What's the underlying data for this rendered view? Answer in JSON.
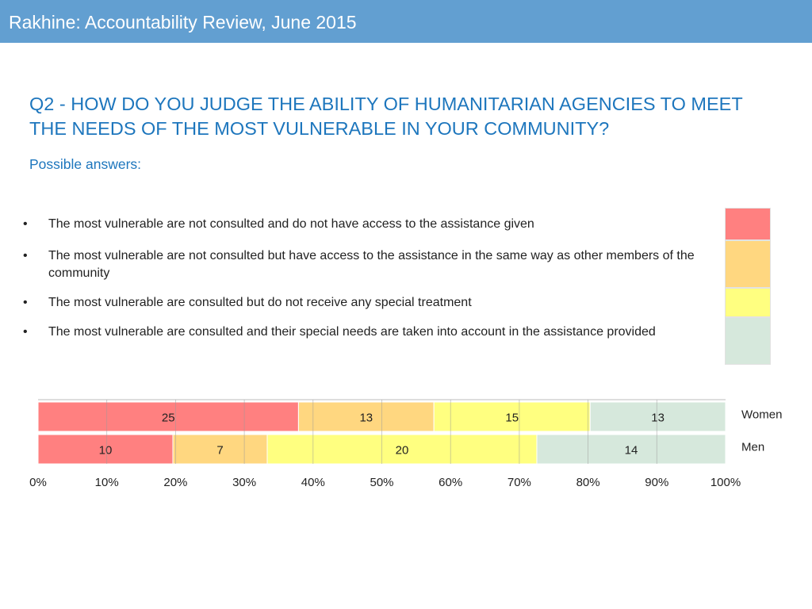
{
  "header": {
    "title": "Rakhine: Accountability Review, June 2015"
  },
  "question": "Q2 - HOW DO YOU JUDGE THE ABILITY OF HUMANITARIAN AGENCIES TO MEET THE NEEDS OF THE MOST VULNERABLE IN YOUR COMMUNITY?",
  "subtitle": "Possible answers:",
  "answers": [
    {
      "bullet": "•",
      "text": "The most vulnerable are not consulted and do not have access to the assistance given",
      "color": "#ff8080"
    },
    {
      "bullet": "•",
      "text": "The most vulnerable are not consulted but have access to the assistance in the same way as other members of the community",
      "color": "#ffd780"
    },
    {
      "bullet": "•",
      "text": "The most vulnerable are consulted but do not receive any special treatment",
      "color": "#ffff80"
    },
    {
      "bullet": "•",
      "text": "The most vulnerable are consulted and their special needs are taken into account in the assistance provided",
      "color": "#d6e8dc"
    }
  ],
  "chart_data": {
    "type": "bar",
    "orientation": "horizontal",
    "stacked": "percent",
    "categories": [
      "Women",
      "Men"
    ],
    "series": [
      {
        "values": [
          25,
          10
        ],
        "color": "#ff8080"
      },
      {
        "values": [
          13,
          7
        ],
        "color": "#ffd780"
      },
      {
        "values": [
          15,
          20
        ],
        "color": "#ffff80"
      },
      {
        "values": [
          13,
          14
        ],
        "color": "#d6e8dc"
      }
    ],
    "xticks": [
      "0%",
      "10%",
      "20%",
      "30%",
      "40%",
      "50%",
      "60%",
      "70%",
      "80%",
      "90%",
      "100%"
    ],
    "xlim": [
      0,
      100
    ],
    "grid": true,
    "legend": "left-of-chart"
  }
}
